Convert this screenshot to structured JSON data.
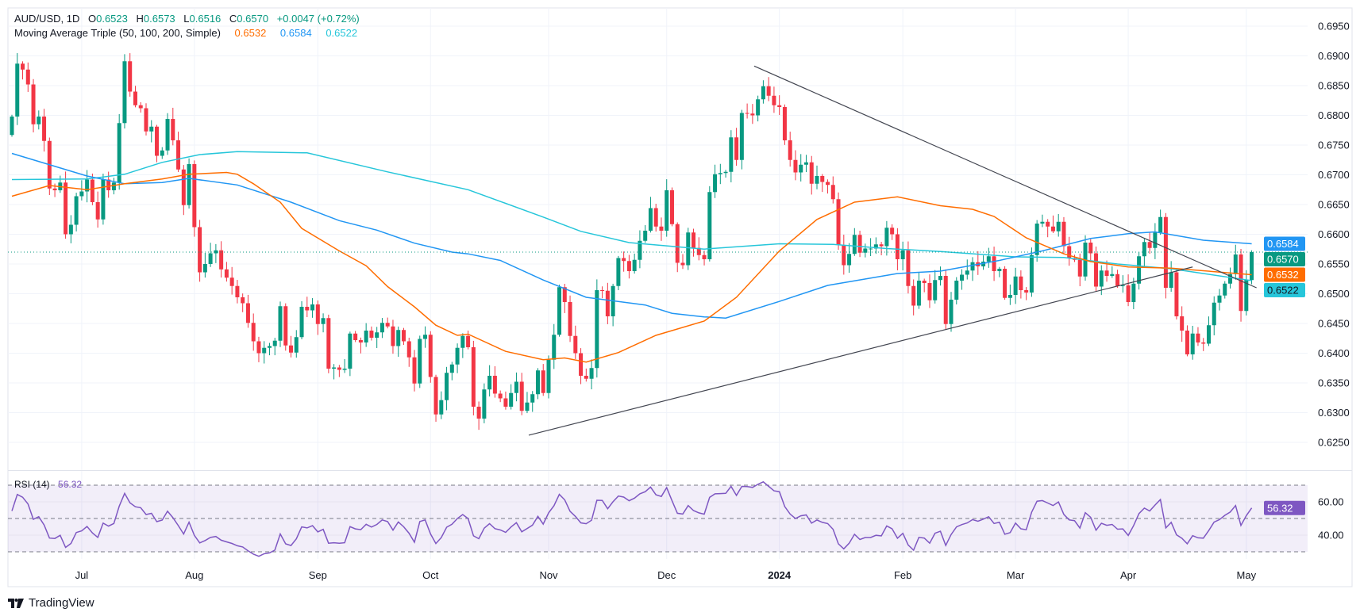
{
  "header": {
    "symbol": "AUD/USD, 1D",
    "o_label": "O",
    "o": "0.6523",
    "h_label": "H",
    "h": "0.6573",
    "l_label": "L",
    "l": "0.6516",
    "c_label": "C",
    "c": "0.6570",
    "change": "+0.0047 (+0.72%)",
    "ma_title": "Moving Average Triple (50, 100, 200, Simple)",
    "ma50": "0.6532",
    "ma100": "0.6584",
    "ma200": "0.6522"
  },
  "rsi": {
    "title": "RSI (14)",
    "value": "56.32"
  },
  "badges": {
    "ma100": "0.6584",
    "last": "0.6570",
    "ma50": "0.6532",
    "ma200": "0.6522",
    "rsi": "56.32"
  },
  "branding": "TradingView",
  "colors": {
    "up": "#089981",
    "down": "#f23645",
    "ma50": "#ff6d00",
    "ma100": "#2196f3",
    "ma200": "#26c6da",
    "rsi": "#7e57c2",
    "trendline": "#434651",
    "grid": "#f0f3fa"
  },
  "chart_data": {
    "type": "candlestick",
    "title": "AUD/USD, 1D",
    "ylim": [
      0.62033,
      0.69807
    ],
    "y_ticks": [
      "0.6950",
      "0.6900",
      "0.6850",
      "0.6800",
      "0.6750",
      "0.6700",
      "0.6650",
      "0.6600",
      "0.6550",
      "0.6500",
      "0.6450",
      "0.6400",
      "0.6350",
      "0.6300",
      "0.6250"
    ],
    "x_ticks": [
      {
        "label": "Jul",
        "bar": 13
      },
      {
        "label": "Aug",
        "bar": 34
      },
      {
        "label": "Sep",
        "bar": 57
      },
      {
        "label": "Oct",
        "bar": 78
      },
      {
        "label": "Nov",
        "bar": 100
      },
      {
        "label": "Dec",
        "bar": 122
      },
      {
        "label": "2024",
        "bar": 143,
        "bold": true
      },
      {
        "label": "Feb",
        "bar": 166
      },
      {
        "label": "Mar",
        "bar": 187
      },
      {
        "label": "Apr",
        "bar": 208
      },
      {
        "label": "May",
        "bar": 230
      }
    ],
    "first_open": 0.6767,
    "closes": [
      0.6798,
      0.6887,
      0.6877,
      0.6852,
      0.6785,
      0.6798,
      0.6757,
      0.6677,
      0.6674,
      0.6687,
      0.66,
      0.6616,
      0.6664,
      0.6672,
      0.6692,
      0.6654,
      0.6625,
      0.6692,
      0.6674,
      0.6687,
      0.6787,
      0.6891,
      0.684,
      0.6817,
      0.6812,
      0.6773,
      0.6781,
      0.6732,
      0.6741,
      0.6794,
      0.6758,
      0.6709,
      0.6649,
      0.6718,
      0.6612,
      0.6536,
      0.655,
      0.6568,
      0.6573,
      0.6541,
      0.6527,
      0.6513,
      0.6494,
      0.6484,
      0.6451,
      0.642,
      0.64,
      0.6409,
      0.6412,
      0.6421,
      0.6479,
      0.6413,
      0.6401,
      0.6427,
      0.6478,
      0.6472,
      0.6482,
      0.6449,
      0.6459,
      0.6374,
      0.6376,
      0.6372,
      0.6374,
      0.6433,
      0.6422,
      0.6418,
      0.6438,
      0.6426,
      0.6435,
      0.6451,
      0.6445,
      0.6412,
      0.6439,
      0.642,
      0.6393,
      0.6349,
      0.6424,
      0.6431,
      0.636,
      0.6297,
      0.6321,
      0.6367,
      0.6381,
      0.6409,
      0.6429,
      0.641,
      0.631,
      0.629,
      0.6339,
      0.6362,
      0.6332,
      0.6324,
      0.631,
      0.6333,
      0.6352,
      0.6303,
      0.6317,
      0.6331,
      0.6371,
      0.6333,
      0.6389,
      0.6431,
      0.6511,
      0.6486,
      0.6429,
      0.64,
      0.6362,
      0.6357,
      0.6375,
      0.6506,
      0.6505,
      0.6462,
      0.6513,
      0.656,
      0.6555,
      0.6538,
      0.6557,
      0.6589,
      0.6606,
      0.6644,
      0.6613,
      0.6606,
      0.6674,
      0.6617,
      0.6552,
      0.6548,
      0.6603,
      0.6577,
      0.6565,
      0.6558,
      0.6671,
      0.6701,
      0.6703,
      0.6705,
      0.6763,
      0.6725,
      0.6804,
      0.6803,
      0.68,
      0.6827,
      0.6849,
      0.6833,
      0.6817,
      0.6814,
      0.6758,
      0.6725,
      0.6704,
      0.6717,
      0.6721,
      0.6685,
      0.6698,
      0.6688,
      0.6683,
      0.6659,
      0.6582,
      0.6548,
      0.6567,
      0.6599,
      0.6569,
      0.6576,
      0.6576,
      0.6583,
      0.658,
      0.6611,
      0.66,
      0.6558,
      0.6573,
      0.6513,
      0.648,
      0.6522,
      0.6518,
      0.6489,
      0.6523,
      0.653,
      0.6449,
      0.649,
      0.6522,
      0.6532,
      0.6539,
      0.6553,
      0.6546,
      0.6554,
      0.6563,
      0.6538,
      0.6542,
      0.6493,
      0.6498,
      0.6529,
      0.6506,
      0.6502,
      0.6565,
      0.6618,
      0.6621,
      0.6613,
      0.6605,
      0.6621,
      0.658,
      0.656,
      0.6557,
      0.6529,
      0.6586,
      0.6568,
      0.6512,
      0.6539,
      0.653,
      0.6533,
      0.6513,
      0.6514,
      0.6486,
      0.6517,
      0.6563,
      0.6587,
      0.6577,
      0.6603,
      0.6629,
      0.651,
      0.6536,
      0.6462,
      0.6438,
      0.6398,
      0.6433,
      0.6418,
      0.6416,
      0.6447,
      0.6485,
      0.6497,
      0.6517,
      0.6533,
      0.6566,
      0.6471,
      0.6523,
      0.657
    ],
    "last_bar": {
      "open": 0.6523,
      "high": 0.6573,
      "low": 0.6516,
      "close": 0.657
    },
    "ma50": [
      [
        0,
        0.6664
      ],
      [
        7,
        0.6682
      ],
      [
        14,
        0.6675
      ],
      [
        21,
        0.6685
      ],
      [
        28,
        0.6693
      ],
      [
        33,
        0.6701
      ],
      [
        40,
        0.6704
      ],
      [
        42,
        0.6701
      ],
      [
        45,
        0.6685
      ],
      [
        50,
        0.6654
      ],
      [
        54,
        0.661
      ],
      [
        61,
        0.6572
      ],
      [
        66,
        0.6547
      ],
      [
        70,
        0.6512
      ],
      [
        75,
        0.6478
      ],
      [
        79,
        0.6447
      ],
      [
        83,
        0.643
      ],
      [
        85,
        0.6432
      ],
      [
        92,
        0.6403
      ],
      [
        99,
        0.6389
      ],
      [
        103,
        0.6392
      ],
      [
        107,
        0.6385
      ],
      [
        113,
        0.6401
      ],
      [
        120,
        0.643
      ],
      [
        129,
        0.6454
      ],
      [
        135,
        0.6494
      ],
      [
        143,
        0.6572
      ],
      [
        150,
        0.6625
      ],
      [
        157,
        0.6654
      ],
      [
        165,
        0.6663
      ],
      [
        173,
        0.6648
      ],
      [
        179,
        0.6642
      ],
      [
        183,
        0.663
      ],
      [
        189,
        0.6594
      ],
      [
        196,
        0.6567
      ],
      [
        201,
        0.6554
      ],
      [
        208,
        0.6545
      ],
      [
        216,
        0.6543
      ],
      [
        231,
        0.6532
      ]
    ],
    "ma100": [
      [
        0,
        0.6736
      ],
      [
        14,
        0.6698
      ],
      [
        21,
        0.6685
      ],
      [
        28,
        0.6687
      ],
      [
        33,
        0.6694
      ],
      [
        42,
        0.6683
      ],
      [
        52,
        0.6654
      ],
      [
        61,
        0.6623
      ],
      [
        68,
        0.6607
      ],
      [
        75,
        0.6585
      ],
      [
        82,
        0.657
      ],
      [
        85,
        0.6567
      ],
      [
        91,
        0.6556
      ],
      [
        99,
        0.6523
      ],
      [
        107,
        0.6494
      ],
      [
        118,
        0.6481
      ],
      [
        123,
        0.6467
      ],
      [
        129,
        0.6461
      ],
      [
        133,
        0.6459
      ],
      [
        143,
        0.6487
      ],
      [
        152,
        0.6514
      ],
      [
        165,
        0.6534
      ],
      [
        173,
        0.6538
      ],
      [
        184,
        0.6556
      ],
      [
        192,
        0.6572
      ],
      [
        201,
        0.6593
      ],
      [
        208,
        0.6601
      ],
      [
        213,
        0.6604
      ],
      [
        222,
        0.659
      ],
      [
        231,
        0.6584
      ]
    ],
    "ma200": [
      [
        0,
        0.6692
      ],
      [
        14,
        0.6693
      ],
      [
        21,
        0.6701
      ],
      [
        28,
        0.6721
      ],
      [
        35,
        0.6734
      ],
      [
        42,
        0.6739
      ],
      [
        55,
        0.6737
      ],
      [
        70,
        0.6705
      ],
      [
        85,
        0.6675
      ],
      [
        99,
        0.6629
      ],
      [
        106,
        0.6605
      ],
      [
        115,
        0.6586
      ],
      [
        129,
        0.6575
      ],
      [
        143,
        0.6584
      ],
      [
        153,
        0.6583
      ],
      [
        163,
        0.6576
      ],
      [
        173,
        0.6571
      ],
      [
        187,
        0.6562
      ],
      [
        196,
        0.6561
      ],
      [
        206,
        0.655
      ],
      [
        216,
        0.6542
      ],
      [
        231,
        0.6522
      ]
    ],
    "trendlines": [
      {
        "name": "upper",
        "from": [
          138.3,
          0.6883
        ],
        "to": [
          231.9,
          0.651
        ]
      },
      {
        "name": "lower",
        "from": [
          96.3,
          0.6262
        ],
        "to": [
          220,
          0.6545
        ]
      }
    ],
    "last_price": 0.657,
    "rsi_period": 14,
    "rsi_levels": [
      70,
      50,
      30
    ],
    "rsi_ticks": [
      "60.00",
      "40.00"
    ],
    "rsi_ylim": [
      25.7,
      78.6
    ],
    "rsi_last": 56.32
  }
}
